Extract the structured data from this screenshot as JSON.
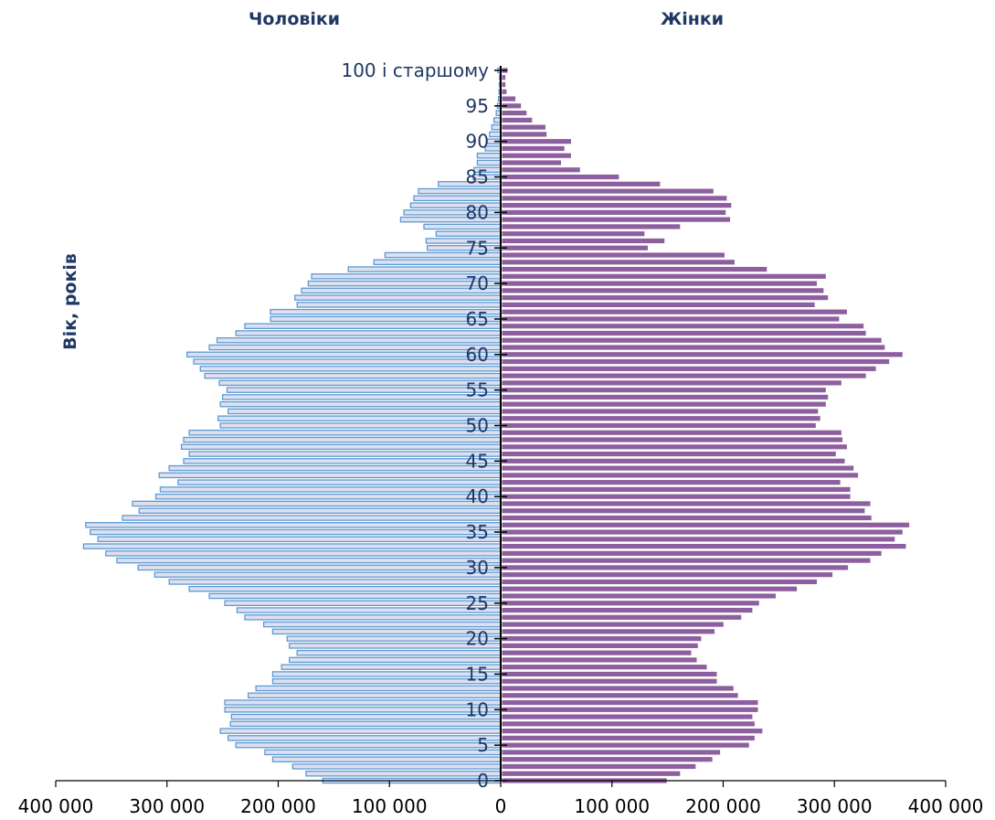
{
  "chart_data": {
    "type": "bar",
    "orientation": "horizontal",
    "title": "",
    "ylabel": "Вік, років",
    "xlim": [
      -400000,
      400000
    ],
    "x_ticks": [
      -400000,
      -300000,
      -200000,
      -100000,
      0,
      100000,
      200000,
      300000,
      400000
    ],
    "x_tick_labels": [
      "400 000",
      "300 000",
      "200 000",
      "100 000",
      "0",
      "100 000",
      "200 000",
      "300 000",
      "400 000"
    ],
    "y_tick_labels": [
      "0",
      "5",
      "10",
      "15",
      "20",
      "25",
      "30",
      "35",
      "40",
      "45",
      "50",
      "55",
      "60",
      "65",
      "70",
      "75",
      "80",
      "85",
      "90",
      "95",
      "100 і старшому"
    ],
    "categories": [
      "0",
      "1",
      "2",
      "3",
      "4",
      "5",
      "6",
      "7",
      "8",
      "9",
      "10",
      "11",
      "12",
      "13",
      "14",
      "15",
      "16",
      "17",
      "18",
      "19",
      "20",
      "21",
      "22",
      "23",
      "24",
      "25",
      "26",
      "27",
      "28",
      "29",
      "30",
      "31",
      "32",
      "33",
      "34",
      "35",
      "36",
      "37",
      "38",
      "39",
      "40",
      "41",
      "42",
      "43",
      "44",
      "45",
      "46",
      "47",
      "48",
      "49",
      "50",
      "51",
      "52",
      "53",
      "54",
      "55",
      "56",
      "57",
      "58",
      "59",
      "60",
      "61",
      "62",
      "63",
      "64",
      "65",
      "66",
      "67",
      "68",
      "69",
      "70",
      "71",
      "72",
      "73",
      "74",
      "75",
      "76",
      "77",
      "78",
      "79",
      "80",
      "81",
      "82",
      "83",
      "84",
      "85",
      "86",
      "87",
      "88",
      "89",
      "90",
      "91",
      "92",
      "93",
      "94",
      "95",
      "96",
      "97",
      "98",
      "99",
      "100 і старшому"
    ],
    "series": [
      {
        "name": "Чоловіки",
        "color": "#dfe0ef",
        "stroke": "#5b9bd5",
        "values": [
          160000,
          175000,
          187000,
          205000,
          212000,
          238000,
          245000,
          252000,
          243000,
          242000,
          248000,
          248000,
          227000,
          220000,
          205000,
          205000,
          197000,
          190000,
          183000,
          190000,
          192000,
          205000,
          213000,
          230000,
          237000,
          248000,
          262000,
          280000,
          298000,
          311000,
          326000,
          345000,
          355000,
          375000,
          362000,
          369000,
          373000,
          340000,
          325000,
          331000,
          310000,
          306000,
          290000,
          307000,
          298000,
          285000,
          280000,
          287000,
          285000,
          280000,
          252000,
          254000,
          245000,
          252000,
          250000,
          246000,
          253000,
          266000,
          270000,
          276000,
          282000,
          262000,
          255000,
          238000,
          230000,
          207000,
          207000,
          183000,
          185000,
          179000,
          173000,
          170000,
          137000,
          114000,
          104000,
          66000,
          67000,
          58000,
          69000,
          90000,
          87000,
          81000,
          78000,
          74000,
          56000,
          25000,
          24000,
          21000,
          21000,
          14000,
          12000,
          10000,
          8000,
          6000,
          4000,
          3000,
          2000,
          1500,
          1200,
          1000,
          2500
        ]
      },
      {
        "name": "Жінки",
        "color": "#8e5f9e",
        "values": [
          148000,
          160000,
          174000,
          189000,
          196000,
          222000,
          227000,
          234000,
          227000,
          225000,
          230000,
          230000,
          212000,
          208000,
          193000,
          193000,
          184000,
          175000,
          170000,
          176000,
          179000,
          191000,
          199000,
          215000,
          225000,
          231000,
          246000,
          265000,
          283000,
          297000,
          311000,
          331000,
          341000,
          363000,
          353000,
          360000,
          366000,
          332000,
          326000,
          331000,
          313000,
          313000,
          304000,
          320000,
          316000,
          308000,
          300000,
          310000,
          306000,
          305000,
          282000,
          286000,
          284000,
          291000,
          293000,
          291000,
          305000,
          327000,
          336000,
          348000,
          360000,
          344000,
          341000,
          327000,
          325000,
          303000,
          310000,
          281000,
          293000,
          289000,
          283000,
          291000,
          238000,
          209000,
          200000,
          131000,
          146000,
          128000,
          160000,
          205000,
          201000,
          206000,
          202000,
          190000,
          142000,
          105000,
          70000,
          53000,
          62000,
          56000,
          62000,
          40000,
          39000,
          27000,
          22000,
          17000,
          12000,
          4000,
          3000,
          3000,
          5000
        ]
      }
    ]
  },
  "headers": {
    "male": "Чоловіки",
    "female": "Жінки"
  }
}
